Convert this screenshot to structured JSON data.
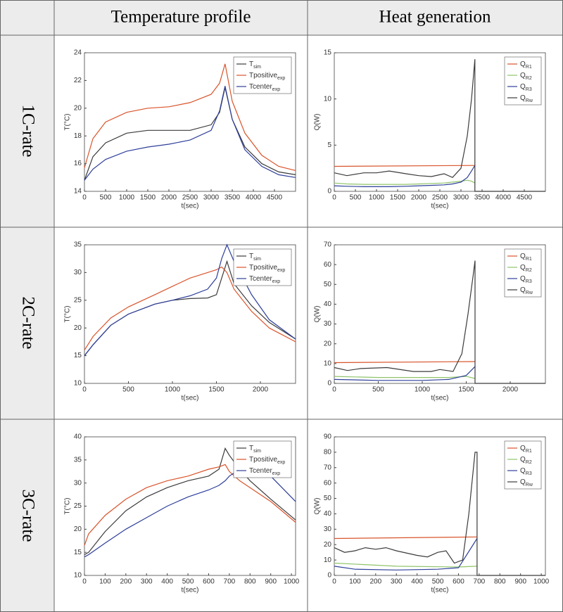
{
  "table": {
    "headers": [
      "Temperature profile",
      "Heat generation"
    ],
    "rows": [
      "1C-rate",
      "2C-rate",
      "3C-rate"
    ]
  },
  "chart_data": [
    {
      "type": "line",
      "xlabel": "t(sec)",
      "ylabel": "T(°C)",
      "xlim": [
        0,
        5000
      ],
      "xticks": [
        0,
        500,
        1000,
        1500,
        2000,
        2500,
        3000,
        3500,
        4000,
        4500
      ],
      "ylim": [
        14,
        24
      ],
      "yticks": [
        14,
        16,
        18,
        20,
        22,
        24
      ],
      "legend": "upper right",
      "series": [
        {
          "name": "T",
          "sub": "sim",
          "color": "#3b3b3b",
          "x": [
            0,
            200,
            500,
            1000,
            1500,
            2000,
            2500,
            3000,
            3200,
            3330,
            3500,
            3800,
            4200,
            4600,
            5000
          ],
          "values": [
            14.8,
            16.5,
            17.5,
            18.2,
            18.4,
            18.4,
            18.4,
            18.8,
            19.7,
            21.5,
            19.2,
            17.2,
            16.0,
            15.4,
            15.2
          ]
        },
        {
          "name": "Tpositive",
          "sub": "exp",
          "color": "#d9542b",
          "x": [
            0,
            200,
            500,
            1000,
            1500,
            2000,
            2500,
            3000,
            3200,
            3330,
            3500,
            3800,
            4200,
            4600,
            5000
          ],
          "values": [
            15.7,
            17.8,
            19.0,
            19.7,
            20.0,
            20.1,
            20.4,
            21.0,
            21.8,
            23.2,
            20.5,
            18.2,
            16.6,
            15.8,
            15.5
          ]
        },
        {
          "name": "Tcenter",
          "sub": "exp",
          "color": "#2e3f9a",
          "x": [
            0,
            200,
            500,
            1000,
            1500,
            2000,
            2500,
            3000,
            3200,
            3330,
            3500,
            3800,
            4200,
            4600,
            5000
          ],
          "values": [
            14.8,
            15.6,
            16.3,
            16.9,
            17.2,
            17.4,
            17.7,
            18.4,
            19.8,
            21.6,
            19.2,
            17.0,
            15.8,
            15.2,
            15.0
          ]
        }
      ]
    },
    {
      "type": "line",
      "xlabel": "t(sec)",
      "ylabel": "Q(W)",
      "xlim": [
        0,
        5000
      ],
      "xticks": [
        0,
        500,
        1000,
        1500,
        2000,
        2500,
        3000,
        3500,
        4000,
        4500
      ],
      "ylim": [
        0,
        15
      ],
      "yticks": [
        0,
        5,
        10,
        15
      ],
      "legend": "upper right",
      "series": [
        {
          "name": "Q",
          "sub": "R1",
          "color": "#d9542b",
          "x": [
            0,
            3330
          ],
          "values": [
            2.7,
            2.8
          ]
        },
        {
          "name": "Q",
          "sub": "R2",
          "color": "#8fc46a",
          "x": [
            0,
            300,
            700,
            1000,
            1300,
            1700,
            2000,
            2300,
            2600,
            2800,
            3000,
            3150,
            3250,
            3330
          ],
          "values": [
            0.9,
            0.8,
            0.75,
            0.75,
            0.75,
            0.75,
            0.8,
            0.85,
            0.9,
            1.0,
            1.1,
            1.2,
            1.1,
            0.9
          ]
        },
        {
          "name": "Q",
          "sub": "R3",
          "color": "#2e3f9a",
          "x": [
            0,
            300,
            700,
            1000,
            1300,
            1700,
            2000,
            2300,
            2600,
            2800,
            3000,
            3150,
            3250,
            3330
          ],
          "values": [
            0.6,
            0.55,
            0.5,
            0.5,
            0.5,
            0.55,
            0.6,
            0.65,
            0.7,
            0.8,
            1.0,
            1.5,
            2.2,
            2.8
          ]
        },
        {
          "name": "Q",
          "sub": "Rw",
          "color": "#3b3b3b",
          "x": [
            0,
            300,
            700,
            1000,
            1300,
            1700,
            2000,
            2300,
            2600,
            2800,
            3000,
            3150,
            3250,
            3330,
            3330,
            5000
          ],
          "values": [
            2.0,
            1.7,
            2.0,
            2.0,
            2.2,
            1.9,
            1.7,
            1.6,
            1.9,
            1.5,
            2.5,
            6,
            10,
            14.3,
            0,
            0
          ]
        }
      ]
    },
    {
      "type": "line",
      "xlabel": "t(sec)",
      "ylabel": "T(°C)",
      "xlim": [
        0,
        2400
      ],
      "xticks": [
        0,
        500,
        1000,
        1500,
        2000
      ],
      "ylim": [
        10,
        35
      ],
      "yticks": [
        10,
        15,
        20,
        25,
        30,
        35
      ],
      "legend": "upper right",
      "series": [
        {
          "name": "T",
          "sub": "sim",
          "color": "#3b3b3b",
          "x": [
            0,
            100,
            300,
            500,
            800,
            1000,
            1200,
            1400,
            1500,
            1560,
            1620,
            1700,
            1900,
            2100,
            2400
          ],
          "values": [
            15,
            17,
            20.5,
            22.5,
            24.3,
            25,
            25.3,
            25.4,
            26,
            29,
            32,
            28,
            24,
            21,
            18
          ]
        },
        {
          "name": "Tpositive",
          "sub": "exp",
          "color": "#d9542b",
          "x": [
            0,
            100,
            300,
            500,
            800,
            1000,
            1200,
            1400,
            1500,
            1560,
            1620,
            1700,
            1900,
            2100,
            2400
          ],
          "values": [
            16,
            18.5,
            21.8,
            23.8,
            26,
            27.5,
            29,
            30,
            30.5,
            31,
            30,
            27,
            23,
            20,
            17.5
          ]
        },
        {
          "name": "Tcenter",
          "sub": "exp",
          "color": "#2e3f9a",
          "x": [
            0,
            100,
            300,
            500,
            800,
            1000,
            1200,
            1400,
            1500,
            1560,
            1620,
            1700,
            1900,
            2100,
            2400
          ],
          "values": [
            15,
            17,
            20.5,
            22.5,
            24.3,
            25,
            25.8,
            27,
            29,
            32.5,
            35,
            32,
            26,
            21.5,
            18
          ]
        }
      ]
    },
    {
      "type": "line",
      "xlabel": "t(sec)",
      "ylabel": "Q(W)",
      "xlim": [
        0,
        2400
      ],
      "xticks": [
        0,
        500,
        1000,
        1500,
        2000
      ],
      "ylim": [
        0,
        70
      ],
      "yticks": [
        0,
        10,
        20,
        30,
        40,
        50,
        60,
        70
      ],
      "legend": "upper right",
      "series": [
        {
          "name": "Q",
          "sub": "R1",
          "color": "#d9542b",
          "x": [
            0,
            1600
          ],
          "values": [
            10.5,
            11
          ]
        },
        {
          "name": "Q",
          "sub": "R2",
          "color": "#8fc46a",
          "x": [
            0,
            500,
            1000,
            1300,
            1500,
            1600
          ],
          "values": [
            3.5,
            3,
            3,
            3,
            3.5,
            2.5
          ]
        },
        {
          "name": "Q",
          "sub": "R3",
          "color": "#2e3f9a",
          "x": [
            0,
            500,
            1000,
            1300,
            1500,
            1600
          ],
          "values": [
            2,
            1.5,
            1.5,
            2,
            4,
            8.5
          ]
        },
        {
          "name": "Q",
          "sub": "Rw",
          "color": "#3b3b3b",
          "x": [
            0,
            150,
            300,
            600,
            900,
            1100,
            1200,
            1280,
            1350,
            1450,
            1520,
            1580,
            1600,
            1600,
            2400
          ],
          "values": [
            8,
            6.5,
            7.5,
            8,
            6,
            6,
            7,
            6.5,
            6,
            15,
            35,
            55,
            62,
            0,
            0
          ]
        }
      ]
    },
    {
      "type": "line",
      "xlabel": "t(sec)",
      "ylabel": "T(°C)",
      "xlim": [
        0,
        1020
      ],
      "xticks": [
        0,
        100,
        200,
        300,
        400,
        500,
        600,
        700,
        800,
        900,
        1000
      ],
      "ylim": [
        10,
        40
      ],
      "yticks": [
        10,
        15,
        20,
        25,
        30,
        35,
        40
      ],
      "legend": "upper right",
      "series": [
        {
          "name": "T",
          "sub": "sim",
          "color": "#3b3b3b",
          "x": [
            0,
            20,
            100,
            200,
            300,
            400,
            500,
            600,
            650,
            680,
            700,
            750,
            800,
            900,
            1020
          ],
          "values": [
            14.5,
            15,
            19.5,
            24,
            27,
            29,
            30.5,
            31.5,
            33,
            37.5,
            36,
            33,
            30.5,
            26.5,
            22
          ]
        },
        {
          "name": "Tpositive",
          "sub": "exp",
          "color": "#d9542b",
          "x": [
            0,
            20,
            100,
            200,
            300,
            400,
            500,
            600,
            650,
            680,
            700,
            750,
            800,
            900,
            1020
          ],
          "values": [
            16.5,
            19,
            23,
            26.5,
            29,
            30.5,
            31.5,
            33,
            33.5,
            34,
            32.5,
            30.5,
            29,
            26,
            21.5
          ]
        },
        {
          "name": "Tcenter",
          "sub": "exp",
          "color": "#2e3f9a",
          "x": [
            0,
            20,
            100,
            200,
            300,
            400,
            500,
            600,
            650,
            680,
            700,
            750,
            800,
            900,
            1020
          ],
          "values": [
            14,
            14.5,
            17,
            20,
            22.5,
            25,
            27,
            28.5,
            29.5,
            30.5,
            31.5,
            33,
            33.8,
            31.5,
            26
          ]
        }
      ]
    },
    {
      "type": "line",
      "xlabel": "t(sec)",
      "ylabel": "Q(W)",
      "xlim": [
        0,
        1020
      ],
      "xticks": [
        0,
        100,
        200,
        300,
        400,
        500,
        600,
        700,
        800,
        900,
        1000
      ],
      "ylim": [
        0,
        90
      ],
      "yticks": [
        0,
        10,
        20,
        30,
        40,
        50,
        60,
        70,
        80,
        90
      ],
      "legend": "upper right",
      "series": [
        {
          "name": "Q",
          "sub": "R1",
          "color": "#d9542b",
          "x": [
            0,
            690
          ],
          "values": [
            24,
            25
          ]
        },
        {
          "name": "Q",
          "sub": "R2",
          "color": "#8fc46a",
          "x": [
            0,
            300,
            600,
            690
          ],
          "values": [
            8,
            6,
            5.5,
            6
          ]
        },
        {
          "name": "Q",
          "sub": "R3",
          "color": "#2e3f9a",
          "x": [
            0,
            100,
            300,
            500,
            600,
            690
          ],
          "values": [
            6,
            4,
            3.5,
            4,
            5,
            24
          ]
        },
        {
          "name": "Q",
          "sub": "Rw",
          "color": "#3b3b3b",
          "x": [
            0,
            50,
            100,
            150,
            200,
            250,
            300,
            400,
            450,
            500,
            540,
            580,
            620,
            650,
            680,
            690,
            690,
            1020
          ],
          "values": [
            18,
            15,
            16,
            18,
            17,
            18,
            16,
            13,
            12,
            15,
            16,
            8,
            10,
            40,
            80,
            80,
            0,
            0
          ]
        }
      ]
    }
  ]
}
